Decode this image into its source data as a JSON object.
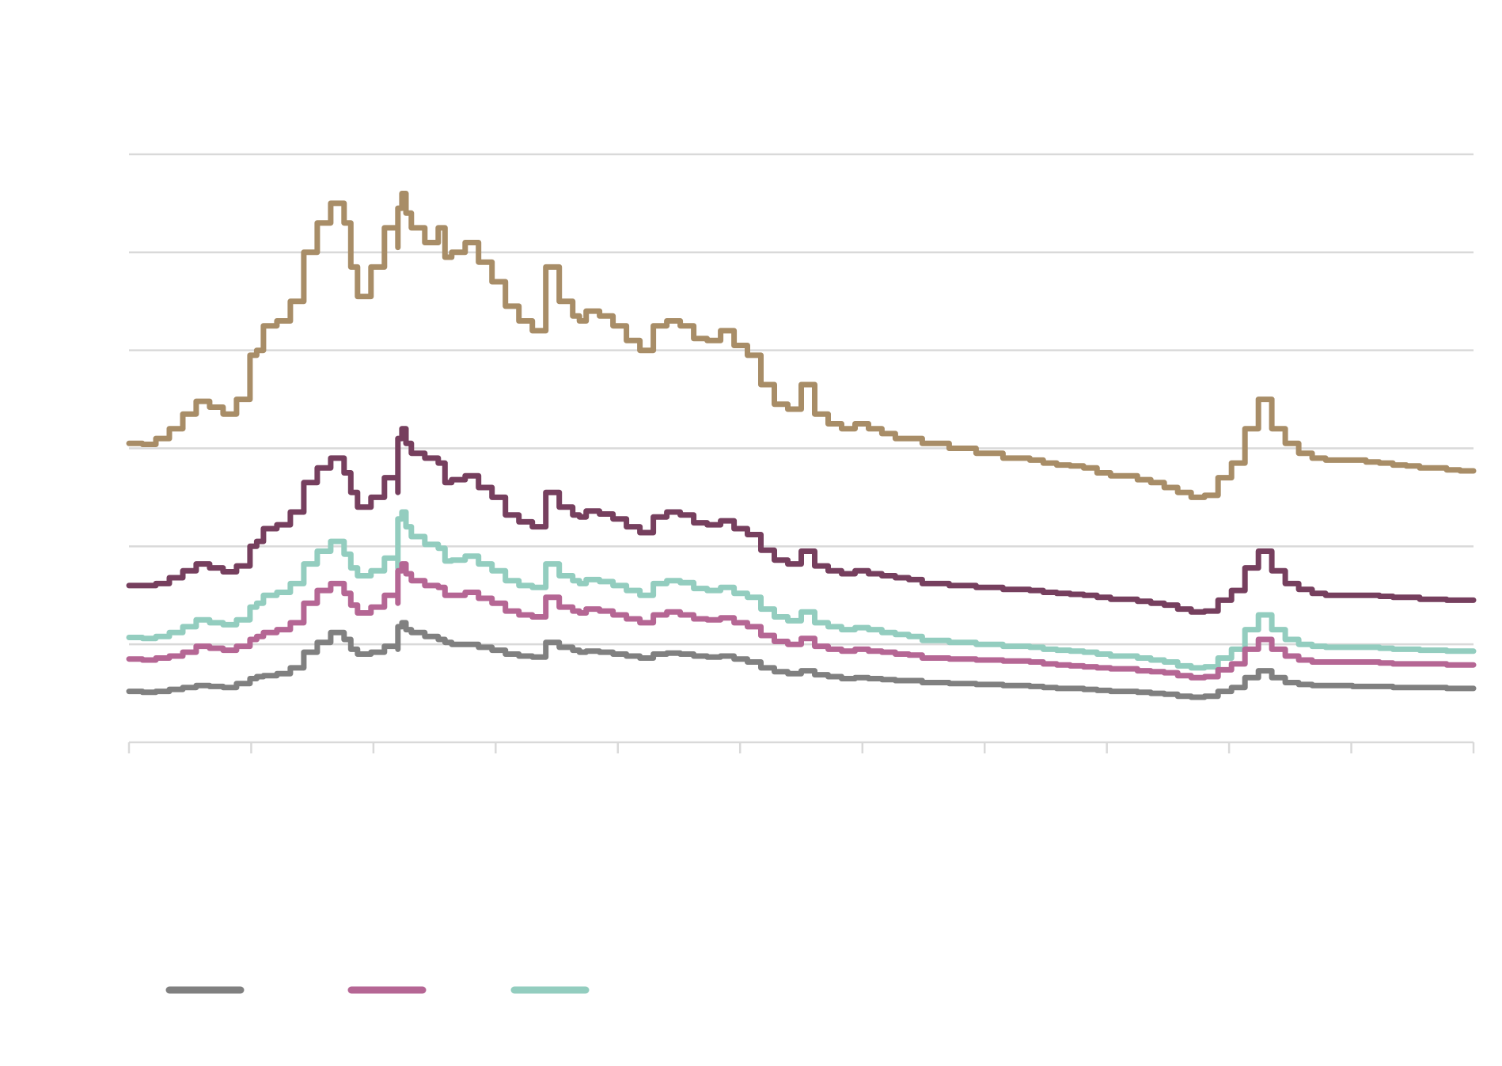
{
  "chart_data": {
    "type": "line",
    "title": "",
    "xlabel": "",
    "ylabel": "",
    "grid": true,
    "legend_placement": "bottom-left",
    "x_range": [
      0,
      1
    ],
    "y_range": [
      0,
      6
    ],
    "gridlines_y": [
      1,
      2,
      3,
      4,
      5,
      6
    ],
    "x_ticks": [
      0,
      0.0909,
      0.1818,
      0.2727,
      0.3636,
      0.4545,
      0.5455,
      0.6364,
      0.7273,
      0.8182,
      0.9091,
      1.0
    ],
    "series": [
      {
        "color": "#a88d67",
        "x": [
          0.0,
          0.01,
          0.02,
          0.03,
          0.04,
          0.05,
          0.06,
          0.07,
          0.08,
          0.09,
          0.095,
          0.1,
          0.11,
          0.12,
          0.13,
          0.14,
          0.15,
          0.16,
          0.165,
          0.17,
          0.18,
          0.19,
          0.2,
          0.2,
          0.203,
          0.206,
          0.21,
          0.22,
          0.23,
          0.235,
          0.24,
          0.25,
          0.26,
          0.27,
          0.28,
          0.29,
          0.3,
          0.31,
          0.32,
          0.33,
          0.335,
          0.34,
          0.35,
          0.36,
          0.37,
          0.38,
          0.39,
          0.4,
          0.41,
          0.42,
          0.43,
          0.44,
          0.45,
          0.46,
          0.47,
          0.48,
          0.49,
          0.5,
          0.51,
          0.52,
          0.53,
          0.54,
          0.55,
          0.56,
          0.57,
          0.58,
          0.59,
          0.6,
          0.61,
          0.62,
          0.63,
          0.64,
          0.65,
          0.66,
          0.67,
          0.68,
          0.69,
          0.7,
          0.71,
          0.72,
          0.73,
          0.74,
          0.75,
          0.76,
          0.77,
          0.78,
          0.79,
          0.8,
          0.81,
          0.82,
          0.83,
          0.84,
          0.85,
          0.86,
          0.87,
          0.88,
          0.89,
          0.9,
          0.91,
          0.92,
          0.93,
          0.94,
          0.95,
          0.96,
          0.97,
          0.98,
          0.99,
          1.0
        ],
        "y": [
          3.05,
          3.04,
          3.1,
          3.2,
          3.35,
          3.48,
          3.42,
          3.35,
          3.5,
          3.95,
          4.0,
          4.25,
          4.3,
          4.5,
          5.0,
          5.3,
          5.5,
          5.3,
          4.85,
          4.55,
          4.85,
          5.25,
          5.05,
          5.45,
          5.6,
          5.4,
          5.25,
          5.1,
          5.25,
          4.95,
          5.0,
          5.1,
          4.9,
          4.7,
          4.45,
          4.3,
          4.2,
          4.85,
          4.5,
          4.35,
          4.3,
          4.4,
          4.35,
          4.25,
          4.1,
          4.0,
          4.25,
          4.3,
          4.25,
          4.12,
          4.1,
          4.2,
          4.05,
          3.95,
          3.65,
          3.45,
          3.4,
          3.65,
          3.35,
          3.25,
          3.2,
          3.25,
          3.2,
          3.15,
          3.1,
          3.1,
          3.05,
          3.05,
          3.0,
          3.0,
          2.95,
          2.95,
          2.9,
          2.9,
          2.88,
          2.85,
          2.83,
          2.82,
          2.8,
          2.75,
          2.72,
          2.72,
          2.68,
          2.65,
          2.6,
          2.55,
          2.5,
          2.52,
          2.7,
          2.85,
          3.2,
          3.5,
          3.2,
          3.05,
          2.95,
          2.9,
          2.88,
          2.88,
          2.88,
          2.86,
          2.85,
          2.83,
          2.82,
          2.8,
          2.8,
          2.78,
          2.77,
          2.77
        ]
      },
      {
        "color": "#763f5e",
        "x": [
          0.0,
          0.01,
          0.02,
          0.03,
          0.04,
          0.05,
          0.06,
          0.07,
          0.08,
          0.09,
          0.095,
          0.1,
          0.11,
          0.12,
          0.13,
          0.14,
          0.15,
          0.16,
          0.165,
          0.17,
          0.18,
          0.19,
          0.2,
          0.2,
          0.203,
          0.206,
          0.21,
          0.22,
          0.23,
          0.235,
          0.24,
          0.25,
          0.26,
          0.27,
          0.28,
          0.29,
          0.3,
          0.31,
          0.32,
          0.33,
          0.335,
          0.34,
          0.35,
          0.36,
          0.37,
          0.38,
          0.39,
          0.4,
          0.41,
          0.42,
          0.43,
          0.44,
          0.45,
          0.46,
          0.47,
          0.48,
          0.49,
          0.5,
          0.51,
          0.52,
          0.53,
          0.54,
          0.55,
          0.56,
          0.57,
          0.58,
          0.59,
          0.6,
          0.61,
          0.62,
          0.63,
          0.64,
          0.65,
          0.66,
          0.67,
          0.68,
          0.69,
          0.7,
          0.71,
          0.72,
          0.73,
          0.74,
          0.75,
          0.76,
          0.77,
          0.78,
          0.79,
          0.8,
          0.81,
          0.82,
          0.83,
          0.84,
          0.85,
          0.86,
          0.87,
          0.88,
          0.89,
          0.9,
          0.91,
          0.92,
          0.93,
          0.94,
          0.95,
          0.96,
          0.97,
          0.98,
          0.99,
          1.0
        ],
        "y": [
          1.6,
          1.6,
          1.62,
          1.68,
          1.75,
          1.82,
          1.78,
          1.74,
          1.8,
          2.0,
          2.05,
          2.18,
          2.22,
          2.35,
          2.65,
          2.8,
          2.9,
          2.75,
          2.55,
          2.4,
          2.5,
          2.7,
          2.55,
          3.1,
          3.2,
          3.05,
          2.95,
          2.9,
          2.85,
          2.65,
          2.68,
          2.72,
          2.6,
          2.5,
          2.32,
          2.25,
          2.2,
          2.55,
          2.4,
          2.32,
          2.3,
          2.36,
          2.33,
          2.28,
          2.2,
          2.14,
          2.3,
          2.35,
          2.32,
          2.24,
          2.22,
          2.26,
          2.18,
          2.12,
          1.96,
          1.86,
          1.82,
          1.95,
          1.8,
          1.75,
          1.72,
          1.75,
          1.72,
          1.7,
          1.68,
          1.66,
          1.62,
          1.62,
          1.6,
          1.6,
          1.58,
          1.58,
          1.56,
          1.56,
          1.55,
          1.53,
          1.52,
          1.51,
          1.5,
          1.48,
          1.46,
          1.46,
          1.44,
          1.42,
          1.4,
          1.36,
          1.33,
          1.34,
          1.45,
          1.55,
          1.78,
          1.95,
          1.75,
          1.62,
          1.56,
          1.52,
          1.5,
          1.5,
          1.5,
          1.5,
          1.49,
          1.48,
          1.48,
          1.46,
          1.46,
          1.45,
          1.45,
          1.45
        ]
      },
      {
        "color": "#93cdbf",
        "x": [
          0.0,
          0.01,
          0.02,
          0.03,
          0.04,
          0.05,
          0.06,
          0.07,
          0.08,
          0.09,
          0.095,
          0.1,
          0.11,
          0.12,
          0.13,
          0.14,
          0.15,
          0.16,
          0.165,
          0.17,
          0.18,
          0.19,
          0.2,
          0.2,
          0.203,
          0.206,
          0.21,
          0.22,
          0.23,
          0.235,
          0.24,
          0.25,
          0.26,
          0.27,
          0.28,
          0.29,
          0.3,
          0.31,
          0.32,
          0.33,
          0.335,
          0.34,
          0.35,
          0.36,
          0.37,
          0.38,
          0.39,
          0.4,
          0.41,
          0.42,
          0.43,
          0.44,
          0.45,
          0.46,
          0.47,
          0.48,
          0.49,
          0.5,
          0.51,
          0.52,
          0.53,
          0.54,
          0.55,
          0.56,
          0.57,
          0.58,
          0.59,
          0.6,
          0.61,
          0.62,
          0.63,
          0.64,
          0.65,
          0.66,
          0.67,
          0.68,
          0.69,
          0.7,
          0.71,
          0.72,
          0.73,
          0.74,
          0.75,
          0.76,
          0.77,
          0.78,
          0.79,
          0.8,
          0.81,
          0.82,
          0.83,
          0.84,
          0.85,
          0.86,
          0.87,
          0.88,
          0.89,
          0.9,
          0.91,
          0.92,
          0.93,
          0.94,
          0.95,
          0.96,
          0.97,
          0.98,
          0.99,
          1.0
        ],
        "y": [
          1.07,
          1.06,
          1.08,
          1.12,
          1.18,
          1.25,
          1.22,
          1.2,
          1.25,
          1.38,
          1.42,
          1.5,
          1.53,
          1.62,
          1.82,
          1.95,
          2.05,
          1.92,
          1.78,
          1.7,
          1.75,
          1.88,
          1.78,
          2.28,
          2.35,
          2.2,
          2.1,
          2.02,
          1.98,
          1.85,
          1.86,
          1.9,
          1.82,
          1.75,
          1.65,
          1.6,
          1.58,
          1.82,
          1.7,
          1.65,
          1.62,
          1.66,
          1.64,
          1.6,
          1.55,
          1.5,
          1.62,
          1.65,
          1.63,
          1.57,
          1.55,
          1.58,
          1.52,
          1.48,
          1.36,
          1.28,
          1.24,
          1.33,
          1.22,
          1.18,
          1.15,
          1.17,
          1.15,
          1.12,
          1.1,
          1.08,
          1.04,
          1.04,
          1.02,
          1.02,
          1.0,
          1.0,
          0.98,
          0.98,
          0.97,
          0.95,
          0.94,
          0.93,
          0.92,
          0.9,
          0.88,
          0.88,
          0.86,
          0.84,
          0.82,
          0.78,
          0.76,
          0.77,
          0.86,
          0.95,
          1.15,
          1.3,
          1.15,
          1.05,
          1.0,
          0.98,
          0.97,
          0.97,
          0.97,
          0.97,
          0.96,
          0.95,
          0.95,
          0.94,
          0.94,
          0.93,
          0.93,
          0.93
        ]
      },
      {
        "color": "#b56694",
        "x": [
          0.0,
          0.01,
          0.02,
          0.03,
          0.04,
          0.05,
          0.06,
          0.07,
          0.08,
          0.09,
          0.095,
          0.1,
          0.11,
          0.12,
          0.13,
          0.14,
          0.15,
          0.16,
          0.165,
          0.17,
          0.18,
          0.19,
          0.2,
          0.2,
          0.203,
          0.206,
          0.21,
          0.22,
          0.23,
          0.235,
          0.24,
          0.25,
          0.26,
          0.27,
          0.28,
          0.29,
          0.3,
          0.31,
          0.32,
          0.33,
          0.335,
          0.34,
          0.35,
          0.36,
          0.37,
          0.38,
          0.39,
          0.4,
          0.41,
          0.42,
          0.43,
          0.44,
          0.45,
          0.46,
          0.47,
          0.48,
          0.49,
          0.5,
          0.51,
          0.52,
          0.53,
          0.54,
          0.55,
          0.56,
          0.57,
          0.58,
          0.59,
          0.6,
          0.61,
          0.62,
          0.63,
          0.64,
          0.65,
          0.66,
          0.67,
          0.68,
          0.69,
          0.7,
          0.71,
          0.72,
          0.73,
          0.74,
          0.75,
          0.76,
          0.77,
          0.78,
          0.79,
          0.8,
          0.81,
          0.82,
          0.83,
          0.84,
          0.85,
          0.86,
          0.87,
          0.88,
          0.89,
          0.9,
          0.91,
          0.92,
          0.93,
          0.94,
          0.95,
          0.96,
          0.97,
          0.98,
          0.99,
          1.0
        ],
        "y": [
          0.85,
          0.84,
          0.86,
          0.88,
          0.92,
          0.98,
          0.96,
          0.94,
          0.98,
          1.05,
          1.08,
          1.12,
          1.15,
          1.22,
          1.42,
          1.55,
          1.62,
          1.52,
          1.4,
          1.32,
          1.38,
          1.5,
          1.42,
          1.75,
          1.82,
          1.72,
          1.65,
          1.6,
          1.58,
          1.5,
          1.5,
          1.53,
          1.47,
          1.42,
          1.34,
          1.3,
          1.28,
          1.48,
          1.38,
          1.34,
          1.32,
          1.36,
          1.34,
          1.3,
          1.26,
          1.22,
          1.3,
          1.33,
          1.3,
          1.26,
          1.25,
          1.27,
          1.22,
          1.18,
          1.09,
          1.03,
          1.0,
          1.06,
          0.98,
          0.95,
          0.93,
          0.95,
          0.93,
          0.92,
          0.9,
          0.89,
          0.86,
          0.86,
          0.85,
          0.85,
          0.84,
          0.84,
          0.83,
          0.83,
          0.82,
          0.8,
          0.79,
          0.78,
          0.77,
          0.76,
          0.75,
          0.75,
          0.73,
          0.72,
          0.71,
          0.68,
          0.66,
          0.67,
          0.74,
          0.8,
          0.95,
          1.05,
          0.95,
          0.88,
          0.84,
          0.82,
          0.82,
          0.82,
          0.82,
          0.82,
          0.81,
          0.8,
          0.8,
          0.8,
          0.8,
          0.79,
          0.79,
          0.79
        ]
      },
      {
        "color": "#808080",
        "x": [
          0.0,
          0.01,
          0.02,
          0.03,
          0.04,
          0.05,
          0.06,
          0.07,
          0.08,
          0.09,
          0.095,
          0.1,
          0.11,
          0.12,
          0.13,
          0.14,
          0.15,
          0.16,
          0.165,
          0.17,
          0.18,
          0.19,
          0.2,
          0.2,
          0.203,
          0.206,
          0.21,
          0.22,
          0.23,
          0.235,
          0.24,
          0.25,
          0.26,
          0.27,
          0.28,
          0.29,
          0.3,
          0.31,
          0.32,
          0.33,
          0.335,
          0.34,
          0.35,
          0.36,
          0.37,
          0.38,
          0.39,
          0.4,
          0.41,
          0.42,
          0.43,
          0.44,
          0.45,
          0.46,
          0.47,
          0.48,
          0.49,
          0.5,
          0.51,
          0.52,
          0.53,
          0.54,
          0.55,
          0.56,
          0.57,
          0.58,
          0.59,
          0.6,
          0.61,
          0.62,
          0.63,
          0.64,
          0.65,
          0.66,
          0.67,
          0.68,
          0.69,
          0.7,
          0.71,
          0.72,
          0.73,
          0.74,
          0.75,
          0.76,
          0.77,
          0.78,
          0.79,
          0.8,
          0.81,
          0.82,
          0.83,
          0.84,
          0.85,
          0.86,
          0.87,
          0.88,
          0.89,
          0.9,
          0.91,
          0.92,
          0.93,
          0.94,
          0.95,
          0.96,
          0.97,
          0.98,
          0.99,
          1.0
        ],
        "y": [
          0.52,
          0.51,
          0.52,
          0.54,
          0.56,
          0.58,
          0.57,
          0.56,
          0.6,
          0.65,
          0.67,
          0.68,
          0.7,
          0.76,
          0.92,
          1.02,
          1.12,
          1.05,
          0.95,
          0.9,
          0.92,
          0.98,
          0.95,
          1.18,
          1.22,
          1.15,
          1.12,
          1.08,
          1.05,
          1.02,
          1.0,
          1.0,
          0.97,
          0.94,
          0.9,
          0.88,
          0.87,
          1.02,
          0.97,
          0.94,
          0.92,
          0.93,
          0.92,
          0.9,
          0.88,
          0.86,
          0.9,
          0.91,
          0.9,
          0.88,
          0.87,
          0.88,
          0.85,
          0.82,
          0.76,
          0.72,
          0.7,
          0.73,
          0.69,
          0.67,
          0.65,
          0.66,
          0.65,
          0.64,
          0.63,
          0.63,
          0.61,
          0.61,
          0.6,
          0.6,
          0.59,
          0.59,
          0.58,
          0.58,
          0.57,
          0.56,
          0.55,
          0.55,
          0.54,
          0.53,
          0.52,
          0.52,
          0.51,
          0.5,
          0.49,
          0.47,
          0.46,
          0.47,
          0.52,
          0.56,
          0.66,
          0.73,
          0.66,
          0.61,
          0.59,
          0.58,
          0.58,
          0.58,
          0.57,
          0.57,
          0.57,
          0.56,
          0.56,
          0.56,
          0.56,
          0.55,
          0.55,
          0.55
        ]
      }
    ],
    "legend": [
      {
        "color": "#808080"
      },
      {
        "color": "#b56694"
      },
      {
        "color": "#93cdbf"
      }
    ]
  }
}
